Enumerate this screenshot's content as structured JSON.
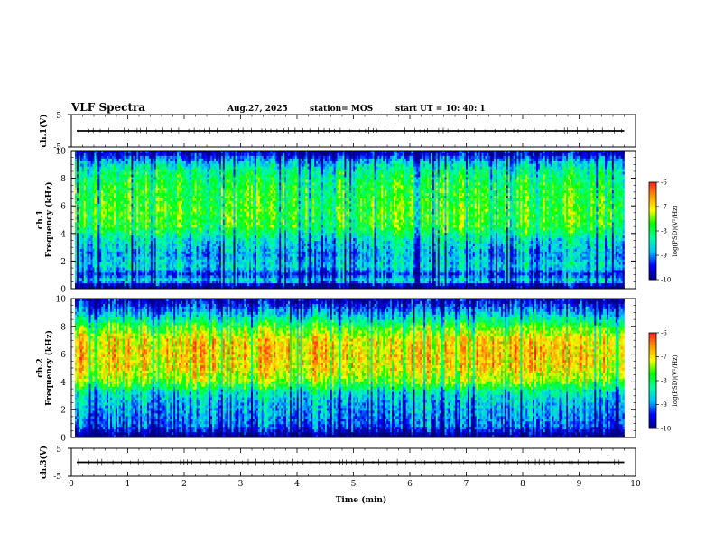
{
  "header": {
    "title": "VLF Spectra",
    "date": "Aug.27, 2025",
    "station": "station= MOS",
    "start": "start  UT  =   10: 40: 1"
  },
  "chart_data": [
    {
      "type": "line",
      "panel": "ch1-waveform",
      "ylabel": "ch.1(V)",
      "ylim": [
        -5,
        5
      ],
      "y_ticks": [
        "5",
        "-5"
      ],
      "x_range": [
        0,
        10
      ],
      "trace_level": 0,
      "trace_end": 9.8
    },
    {
      "type": "heatmap",
      "panel": "ch1-spectrogram",
      "ylabel_line1": "ch.1",
      "ylabel_line2": "Frequency  (kHz)",
      "ylim": [
        0,
        10
      ],
      "y_ticks": [
        "0",
        "2",
        "4",
        "6",
        "8",
        "10"
      ],
      "x_range": [
        0,
        10
      ],
      "data_end": 9.8,
      "colorbar": {
        "label": "log(PSD)(V²/Hz)",
        "range": [
          -10,
          -6
        ],
        "ticks": [
          "-6",
          "-7",
          "-8",
          "-9",
          "-10"
        ]
      },
      "profile_log_psd": [
        {
          "freq": 0.2,
          "value": -9.9
        },
        {
          "freq": 0.6,
          "value": -8.4
        },
        {
          "freq": 1.0,
          "value": -9.3
        },
        {
          "freq": 1.6,
          "value": -8.5
        },
        {
          "freq": 2.5,
          "value": -8.8
        },
        {
          "freq": 3.5,
          "value": -8.4
        },
        {
          "freq": 4.5,
          "value": -7.7
        },
        {
          "freq": 5.5,
          "value": -7.6
        },
        {
          "freq": 6.5,
          "value": -7.7
        },
        {
          "freq": 7.5,
          "value": -7.8
        },
        {
          "freq": 8.5,
          "value": -8.1
        },
        {
          "freq": 9.2,
          "value": -8.7
        },
        {
          "freq": 9.8,
          "value": -9.6
        }
      ]
    },
    {
      "type": "heatmap",
      "panel": "ch2-spectrogram",
      "ylabel_line1": "ch.2",
      "ylabel_line2": "Frequency  (kHz)",
      "ylim": [
        0,
        10
      ],
      "y_ticks": [
        "0",
        "2",
        "4",
        "6",
        "8",
        "10"
      ],
      "x_range": [
        0,
        10
      ],
      "data_end": 9.8,
      "colorbar": {
        "label": "log(PSD)(V²/Hz)",
        "range": [
          -10,
          -6
        ],
        "ticks": [
          "-6",
          "-7",
          "-8",
          "-9",
          "-10"
        ]
      },
      "profile_log_psd": [
        {
          "freq": 0.2,
          "value": -9.9
        },
        {
          "freq": 0.8,
          "value": -9.1
        },
        {
          "freq": 1.6,
          "value": -8.9
        },
        {
          "freq": 2.5,
          "value": -8.7
        },
        {
          "freq": 3.3,
          "value": -8.3
        },
        {
          "freq": 4.0,
          "value": -7.4
        },
        {
          "freq": 5.0,
          "value": -6.9
        },
        {
          "freq": 6.0,
          "value": -6.8
        },
        {
          "freq": 7.0,
          "value": -6.9
        },
        {
          "freq": 7.6,
          "value": -7.3
        },
        {
          "freq": 8.3,
          "value": -8.0
        },
        {
          "freq": 9.0,
          "value": -8.8
        },
        {
          "freq": 9.8,
          "value": -9.6
        }
      ]
    },
    {
      "type": "line",
      "panel": "ch3-waveform",
      "ylabel": "ch.3(V)",
      "ylim": [
        -5,
        5
      ],
      "y_ticks": [
        "5",
        "-5"
      ],
      "x_range": [
        0,
        10
      ],
      "trace_level": 0,
      "trace_end": 9.8,
      "xlabel": "Time  (min)",
      "x_ticks": [
        "0",
        "1",
        "2",
        "3",
        "4",
        "5",
        "6",
        "7",
        "8",
        "9",
        "10"
      ]
    }
  ],
  "colors": {
    "scale": [
      "#000080",
      "#0000ff",
      "#00c0ff",
      "#00ffa0",
      "#00ff00",
      "#ffff00",
      "#ff9900",
      "#ff2020",
      "#ffffff"
    ]
  }
}
